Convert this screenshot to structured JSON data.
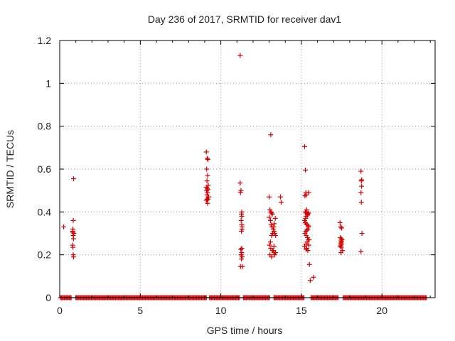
{
  "chart_data": {
    "type": "scatter",
    "title": "Day 236 of 2017, SRMTID for receiver dav1",
    "xlabel": "GPS time / hours",
    "ylabel": "SRMTID / TECUs",
    "xlim": [
      0,
      23.3
    ],
    "ylim": [
      0,
      1.2
    ],
    "x_ticks": [
      0,
      5,
      10,
      15,
      20
    ],
    "y_ticks": [
      0,
      0.2,
      0.4,
      0.6,
      0.8,
      1.0,
      1.2
    ],
    "x_tick_labels": [
      "0",
      "5",
      "10",
      "15",
      "20"
    ],
    "y_tick_labels": [
      "0",
      "0.2",
      "0.4",
      "0.6",
      "0.8",
      "1",
      "1.2"
    ],
    "grid": true,
    "marker": "+",
    "color": "#d40000",
    "zero_segments": [
      [
        0.05,
        0.75
      ],
      [
        1.0,
        9.1
      ],
      [
        9.3,
        11.2
      ],
      [
        11.4,
        13.05
      ],
      [
        13.3,
        15.2
      ],
      [
        15.6,
        17.3
      ],
      [
        17.6,
        22.8
      ]
    ],
    "series": [
      {
        "name": "SRMTID",
        "x": [
          0.25,
          0.8,
          0.82,
          0.84,
          0.86,
          0.8,
          0.82,
          0.84,
          0.86,
          0.84,
          0.82,
          0.86,
          0.88,
          9.1,
          9.15,
          9.2,
          9.12,
          9.18,
          9.14,
          9.22,
          9.1,
          9.16,
          9.2,
          9.12,
          9.18,
          9.14,
          9.22,
          9.16,
          9.1,
          9.2,
          9.14,
          9.18,
          9.24,
          11.2,
          11.22,
          11.25,
          11.3,
          11.28,
          11.26,
          11.3,
          11.32,
          11.28,
          11.24,
          11.3,
          11.26,
          11.32,
          11.28,
          11.34,
          11.22,
          11.3,
          11.26,
          11.32,
          11.3,
          13.0,
          13.05,
          13.1,
          13.15,
          13.2,
          13.0,
          13.08,
          13.12,
          13.18,
          13.25,
          13.3,
          13.35,
          13.4,
          13.38,
          13.32,
          13.28,
          13.22,
          13.15,
          13.08,
          13.02,
          13.1,
          13.2,
          13.3,
          13.4,
          13.35,
          13.25,
          13.15,
          13.05,
          13.1,
          13.3,
          13.7,
          13.75,
          15.2,
          15.25,
          15.3,
          15.22,
          15.28,
          15.32,
          15.35,
          15.4,
          15.38,
          15.3,
          15.26,
          15.2,
          15.24,
          15.3,
          15.36,
          15.42,
          15.45,
          15.4,
          15.34,
          15.28,
          15.22,
          15.3,
          15.38,
          15.44,
          15.36,
          15.28,
          15.2,
          15.32,
          15.4,
          15.46,
          15.5,
          15.45,
          15.38,
          15.3,
          15.24,
          15.3,
          15.48,
          15.55,
          15.75,
          15.45,
          17.4,
          17.45,
          17.5,
          17.42,
          17.48,
          17.52,
          17.46,
          17.44,
          17.5,
          17.42,
          17.48,
          17.55,
          17.46,
          17.5,
          17.44,
          18.7,
          18.72,
          18.74,
          18.7,
          18.72,
          18.76,
          18.7,
          18.74,
          11.2
        ],
        "y": [
          0.33,
          0.31,
          0.305,
          0.29,
          0.275,
          0.245,
          0.235,
          0.2,
          0.19,
          0.36,
          0.32,
          0.555,
          0.3,
          0.68,
          0.65,
          0.645,
          0.6,
          0.57,
          0.545,
          0.525,
          0.515,
          0.51,
          0.505,
          0.5,
          0.49,
          0.48,
          0.47,
          0.46,
          0.455,
          0.46,
          0.455,
          0.44,
          0.47,
          0.535,
          0.49,
          0.5,
          0.4,
          0.39,
          0.36,
          0.34,
          0.32,
          0.31,
          0.225,
          0.21,
          0.2,
          0.19,
          0.18,
          0.145,
          0.145,
          0.23,
          0.2,
          0.33,
          0.38,
          0.47,
          0.41,
          0.4,
          0.395,
          0.39,
          0.375,
          0.36,
          0.34,
          0.33,
          0.32,
          0.31,
          0.3,
          0.29,
          0.37,
          0.345,
          0.33,
          0.3,
          0.29,
          0.26,
          0.245,
          0.23,
          0.22,
          0.21,
          0.21,
          0.2,
          0.22,
          0.19,
          0.2,
          0.76,
          0.24,
          0.47,
          0.445,
          0.705,
          0.595,
          0.48,
          0.475,
          0.49,
          0.41,
          0.4,
          0.39,
          0.385,
          0.38,
          0.37,
          0.36,
          0.35,
          0.345,
          0.34,
          0.335,
          0.33,
          0.32,
          0.315,
          0.31,
          0.3,
          0.29,
          0.28,
          0.27,
          0.26,
          0.25,
          0.24,
          0.23,
          0.22,
          0.245,
          0.155,
          0.395,
          0.39,
          0.395,
          0.4,
          0.225,
          0.27,
          0.08,
          0.095,
          0.49,
          0.35,
          0.33,
          0.325,
          0.28,
          0.275,
          0.27,
          0.265,
          0.255,
          0.25,
          0.24,
          0.235,
          0.22,
          0.21,
          0.26,
          0.245,
          0.59,
          0.545,
          0.52,
          0.49,
          0.445,
          0.3,
          0.215,
          0.55,
          1.13
        ]
      }
    ]
  }
}
